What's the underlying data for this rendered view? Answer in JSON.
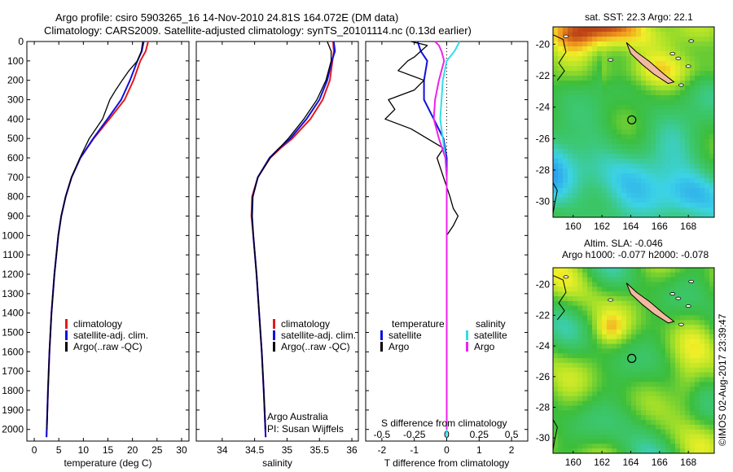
{
  "title": {
    "line1": "Argo profile: csiro 5903265_16 14-Nov-2010 24.81S 164.072E (DM data)",
    "line2": "Climatology: CARS2009. Satellite-adjusted climatology: synTS_20101114.nc (0.13d earlier)"
  },
  "colors": {
    "climatology": "#e41a1c",
    "satellite": "#1010dd",
    "argo": "#000000",
    "salinity_satellite": "#33dde8",
    "salinity_argo": "#ee22ee"
  },
  "chart_data": [
    {
      "type": "line",
      "name": "temperature",
      "xlabel": "temperature (deg C)",
      "xlim": [
        -1.5,
        31.5
      ],
      "xticks": [
        0,
        5,
        10,
        15,
        20,
        25,
        30
      ],
      "ylim": [
        0,
        2060
      ],
      "yticks": [
        0,
        100,
        200,
        300,
        400,
        500,
        600,
        700,
        800,
        900,
        1000,
        1100,
        1200,
        1300,
        1400,
        1500,
        1600,
        1700,
        1800,
        1900,
        2000
      ],
      "legend": [
        "climatology",
        "satellite-adj. clim.",
        "Argo(..raw -QC)"
      ],
      "series": [
        {
          "name": "climatology",
          "depth": [
            0,
            50,
            100,
            200,
            300,
            400,
            500,
            600,
            700,
            800,
            900,
            1000,
            1200,
            1400,
            1600,
            1800,
            2040
          ],
          "values": [
            23.2,
            22.7,
            21.6,
            20.2,
            18.4,
            15.3,
            12.1,
            9.4,
            7.6,
            6.4,
            5.5,
            4.9,
            4.1,
            3.5,
            3.1,
            2.8,
            2.5
          ]
        },
        {
          "name": "satellite-adj. clim.",
          "depth": [
            0,
            50,
            100,
            200,
            300,
            400,
            500,
            600,
            700,
            800,
            900,
            1000,
            1200,
            1400,
            1600,
            1800,
            2040
          ],
          "values": [
            22.3,
            21.9,
            21.0,
            19.5,
            17.7,
            14.9,
            12.0,
            9.4,
            7.6,
            6.4,
            5.5,
            4.9,
            4.1,
            3.5,
            3.1,
            2.8,
            2.5
          ]
        },
        {
          "name": "Argo(..raw -QC)",
          "depth": [
            0,
            50,
            100,
            150,
            200,
            250,
            300,
            400,
            500,
            600,
            700,
            800,
            900,
            1000,
            1200,
            1400,
            1600,
            1800,
            2000
          ],
          "values": [
            22.1,
            21.8,
            21.0,
            19.3,
            17.9,
            16.6,
            15.4,
            13.9,
            11.2,
            9.3,
            7.6,
            6.4,
            5.5,
            4.9,
            4.1,
            3.5,
            3.1,
            2.8,
            2.6
          ]
        }
      ]
    },
    {
      "type": "line",
      "name": "salinity",
      "xlabel": "salinity",
      "xlim": [
        33.6,
        36.1
      ],
      "xticks": [
        34,
        34.5,
        35,
        35.5,
        36
      ],
      "ylim": [
        0,
        2060
      ],
      "legend": [
        "climatology",
        "satellite-adj. clim.",
        "Argo(..raw -QC)"
      ],
      "series": [
        {
          "name": "climatology",
          "depth": [
            0,
            50,
            100,
            200,
            300,
            400,
            500,
            550,
            600,
            700,
            800,
            900,
            1000,
            1200,
            1400,
            1600,
            1800,
            2040
          ],
          "values": [
            35.71,
            35.72,
            35.7,
            35.66,
            35.55,
            35.36,
            35.08,
            34.9,
            34.74,
            34.55,
            34.46,
            34.45,
            34.48,
            34.53,
            34.57,
            34.61,
            34.64,
            34.67
          ]
        },
        {
          "name": "satellite-adj. clim.",
          "depth": [
            0,
            50,
            100,
            200,
            300,
            400,
            500,
            550,
            600,
            700,
            800,
            900,
            1000,
            1200,
            1400,
            1600,
            1800,
            2040
          ],
          "values": [
            35.72,
            35.74,
            35.69,
            35.62,
            35.5,
            35.3,
            35.05,
            34.88,
            34.73,
            34.55,
            34.47,
            34.46,
            34.48,
            34.53,
            34.57,
            34.61,
            34.64,
            34.67
          ]
        },
        {
          "name": "Argo(..raw -QC)",
          "depth": [
            0,
            50,
            100,
            150,
            200,
            300,
            400,
            500,
            550,
            600,
            700,
            800,
            900,
            1000,
            1200,
            1400,
            1600,
            1800,
            2000
          ],
          "values": [
            35.62,
            35.68,
            35.68,
            35.64,
            35.6,
            35.46,
            35.26,
            35.02,
            34.88,
            34.74,
            34.55,
            34.47,
            34.46,
            34.48,
            34.53,
            34.57,
            34.61,
            34.64,
            34.67
          ]
        }
      ],
      "annotations": [
        "Argo Australia",
        "PI: Susan Wijffels"
      ]
    },
    {
      "type": "line",
      "name": "difference",
      "xlabel": "T difference from climatology",
      "xlabel_top": "S difference from climatology",
      "xlim": [
        -2.5,
        2.5
      ],
      "xticks": [
        -2,
        -1,
        0,
        1,
        2
      ],
      "xticks_salinity": [
        "-0.5",
        "-0.25",
        "0",
        "0.25",
        "0.5"
      ],
      "ylim": [
        0,
        2060
      ],
      "legend_temperature": {
        "heading": "temperature",
        "items": [
          "satellite",
          "Argo"
        ]
      },
      "legend_salinity": {
        "heading": "salinity",
        "items": [
          "satellite",
          "Argo"
        ]
      },
      "series": [
        {
          "name": "temperature satellite",
          "depth": [
            0,
            50,
            100,
            200,
            300,
            400,
            500,
            600,
            700,
            800,
            900,
            1000,
            1200,
            1500,
            2040
          ],
          "values": [
            -0.9,
            -0.8,
            -0.6,
            -0.7,
            -0.7,
            -0.4,
            -0.1,
            0.0,
            0.0,
            0.0,
            0.0,
            0.0,
            0.0,
            0.0,
            0.0
          ]
        },
        {
          "name": "temperature Argo",
          "depth": [
            0,
            20,
            50,
            80,
            100,
            150,
            200,
            250,
            300,
            350,
            400,
            450,
            500,
            550,
            600,
            700,
            800,
            860,
            900,
            950,
            1000,
            1200,
            1500,
            2000
          ],
          "values": [
            -1.1,
            -0.6,
            -0.8,
            -1.0,
            -1.2,
            -1.5,
            -0.7,
            -1.0,
            -1.8,
            -1.6,
            -1.9,
            -1.1,
            -0.6,
            -0.1,
            -0.3,
            -0.1,
            0.1,
            0.2,
            0.35,
            0.2,
            0.0,
            0.0,
            0.0,
            0.0
          ]
        },
        {
          "name": "salinity satellite",
          "depth": [
            0,
            50,
            100,
            200,
            300,
            400,
            500,
            600,
            700,
            800,
            900,
            1000,
            1200,
            1500,
            2040
          ],
          "values": [
            0.1,
            0.06,
            0.0,
            -0.03,
            -0.04,
            -0.05,
            -0.03,
            -0.01,
            0.0,
            0.0,
            0.0,
            0.0,
            0.0,
            0.0,
            0.0
          ]
        },
        {
          "name": "salinity Argo",
          "depth": [
            0,
            20,
            50,
            100,
            200,
            300,
            400,
            500,
            600,
            700,
            800,
            900,
            1000,
            1200,
            1500,
            2000
          ],
          "values": [
            -0.09,
            -0.06,
            -0.04,
            -0.02,
            -0.06,
            -0.09,
            -0.1,
            -0.06,
            -0.01,
            0.0,
            0.0,
            0.0,
            0.0,
            0.0,
            0.0,
            0.0
          ]
        }
      ]
    },
    {
      "type": "heatmap",
      "name": "sst-map",
      "title": "sat. SST: 22.3  Argo: 22.1",
      "xticks": [
        "160",
        "162",
        "164",
        "166",
        "168"
      ],
      "yticks": [
        "-20",
        "-22",
        "-24",
        "-26",
        "-28",
        "-30"
      ],
      "xlim": [
        158.6,
        169.8
      ],
      "ylim": [
        -31,
        -18.9
      ],
      "marker": {
        "lon": 164.07,
        "lat": -24.81
      }
    },
    {
      "type": "heatmap",
      "name": "sla-map",
      "title": "Altim. SLA: -0.046",
      "subtitle": "Argo h1000: -0.077 h2000: -0.078",
      "xticks": [
        "160",
        "162",
        "164",
        "166",
        "168"
      ],
      "yticks": [
        "-20",
        "-22",
        "-24",
        "-26",
        "-28",
        "-30"
      ],
      "xlim": [
        158.6,
        169.8
      ],
      "ylim": [
        -31,
        -18.9
      ],
      "marker": {
        "lon": 164.07,
        "lat": -24.81
      }
    }
  ],
  "footer": {
    "stamp": "©IMOS 02-Aug-2017 23:39:47"
  }
}
